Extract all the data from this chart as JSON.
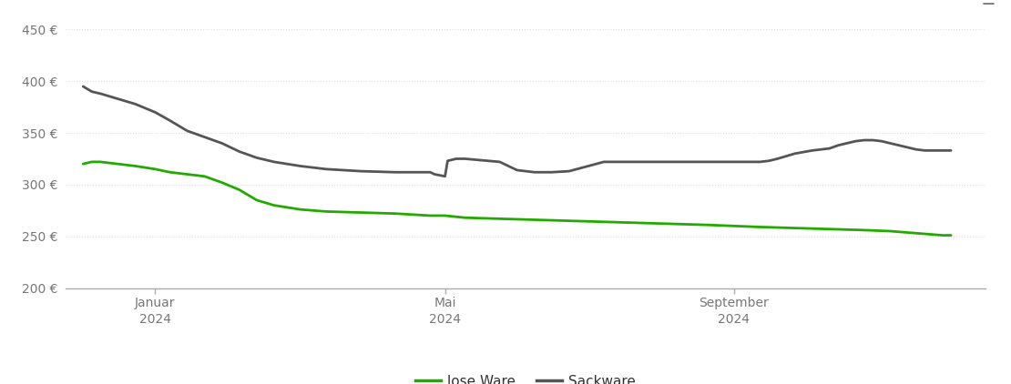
{
  "background_color": "#ffffff",
  "ylim": [
    200,
    460
  ],
  "yticks": [
    200,
    250,
    300,
    350,
    400,
    450
  ],
  "grid_color": "#dddddd",
  "x_tick_labels": [
    [
      "Januar\n2024",
      0.083
    ],
    [
      "Mai\n2024",
      0.417
    ],
    [
      "September\n2024",
      0.75
    ]
  ],
  "line_lose_ware_color": "#22aa00",
  "line_sackware_color": "#555555",
  "line_width": 2.0,
  "legend_labels": [
    "lose Ware",
    "Sackware"
  ],
  "legend_colors": [
    "#22aa00",
    "#555555"
  ],
  "lose_ware_x": [
    0.0,
    0.01,
    0.02,
    0.04,
    0.06,
    0.083,
    0.1,
    0.12,
    0.14,
    0.16,
    0.18,
    0.2,
    0.22,
    0.25,
    0.28,
    0.32,
    0.36,
    0.4,
    0.417,
    0.44,
    0.48,
    0.52,
    0.56,
    0.6,
    0.64,
    0.68,
    0.72,
    0.75,
    0.78,
    0.82,
    0.86,
    0.9,
    0.93,
    0.96,
    0.99,
    1.0
  ],
  "lose_ware_y": [
    320,
    322,
    322,
    320,
    318,
    315,
    312,
    310,
    308,
    302,
    295,
    285,
    280,
    276,
    274,
    273,
    272,
    270,
    270,
    268,
    267,
    266,
    265,
    264,
    263,
    262,
    261,
    260,
    259,
    258,
    257,
    256,
    255,
    253,
    251,
    251
  ],
  "sackware_x": [
    0.0,
    0.01,
    0.02,
    0.04,
    0.06,
    0.083,
    0.1,
    0.12,
    0.14,
    0.16,
    0.18,
    0.2,
    0.22,
    0.25,
    0.28,
    0.32,
    0.36,
    0.4,
    0.405,
    0.417,
    0.42,
    0.43,
    0.44,
    0.48,
    0.5,
    0.52,
    0.54,
    0.56,
    0.6,
    0.64,
    0.68,
    0.7,
    0.72,
    0.74,
    0.75,
    0.76,
    0.77,
    0.78,
    0.79,
    0.8,
    0.82,
    0.84,
    0.86,
    0.87,
    0.88,
    0.89,
    0.9,
    0.91,
    0.92,
    0.93,
    0.94,
    0.95,
    0.96,
    0.97,
    0.98,
    0.99,
    1.0
  ],
  "sackware_y": [
    395,
    390,
    388,
    383,
    378,
    370,
    362,
    352,
    346,
    340,
    332,
    326,
    322,
    318,
    315,
    313,
    312,
    312,
    310,
    308,
    323,
    325,
    325,
    322,
    314,
    312,
    312,
    313,
    322,
    322,
    322,
    322,
    322,
    322,
    322,
    322,
    322,
    322,
    323,
    325,
    330,
    333,
    335,
    338,
    340,
    342,
    343,
    343,
    342,
    340,
    338,
    336,
    334,
    333,
    333,
    333,
    333
  ]
}
